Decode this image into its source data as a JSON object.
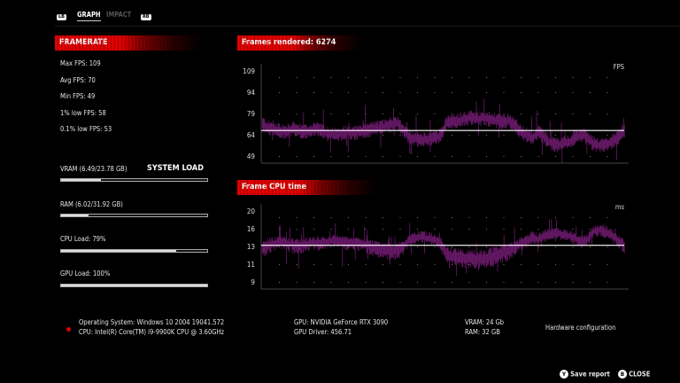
{
  "tabs": {
    "left_bumper": "LB",
    "items": [
      {
        "label": "GRAPH",
        "active": true
      },
      {
        "label": "IMPACT",
        "active": false
      }
    ],
    "right_bumper": "RB"
  },
  "framerate": {
    "title": "FRAMERATE",
    "stats": [
      "Max FPS: 109",
      "Avg FPS: 70",
      "Min FPS: 49",
      "1% low FPS: 58",
      "0.1% low FPS: 53"
    ]
  },
  "system_load": {
    "title": "SYSTEM LOAD",
    "items": [
      {
        "label": "VRAM (6.49/23.78 GB)",
        "fraction": 0.27
      },
      {
        "label": "RAM (6.02/31.92 GB)",
        "fraction": 0.19
      },
      {
        "label": "CPU Load: 79%",
        "fraction": 0.79
      },
      {
        "label": "GPU Load: 100%",
        "fraction": 1.0
      }
    ]
  },
  "hardware": {
    "os": "Operating System: Windows 10 2004 19041.572",
    "cpu": "CPU: Intel(R) Core(TM) i9-9900K CPU @ 3.60GHz",
    "gpu": "GPU: NVIDIA GeForce RTX 3090",
    "gpu_driver": "GPU Driver: 456.71",
    "vram": "VRAM: 24 Gb",
    "ram": "RAM: 32 GB",
    "title": "Hardware configuration",
    "status_color": "#e00000"
  },
  "footer": {
    "save_key": "Y",
    "save_label": "Save report",
    "close_key": "B",
    "close_label": "CLOSE"
  },
  "colors": {
    "accent": "#e00000",
    "series": "#6a1a6a",
    "average": "#ffffff"
  },
  "chart_data": [
    {
      "type": "bar",
      "title": "Frames rendered: 6274",
      "unit": "FPS",
      "ticks": [
        "109",
        "94",
        "79",
        "64",
        "49"
      ],
      "tick_values": [
        109,
        94,
        79,
        64,
        49
      ],
      "average_line": 67,
      "grid": "dotted",
      "trend": [
        72,
        69,
        68,
        67,
        66,
        68,
        67,
        66,
        67,
        68,
        66,
        65,
        64,
        65,
        66,
        65,
        66,
        67,
        68,
        69,
        70,
        71,
        72,
        68,
        62,
        61,
        60,
        61,
        62,
        63,
        72,
        73,
        74,
        75,
        76,
        75,
        76,
        75,
        74,
        73,
        74,
        72,
        66,
        64,
        62,
        66,
        62,
        58,
        57,
        58,
        59,
        62,
        64,
        62,
        57,
        56,
        57,
        59,
        62,
        67
      ]
    },
    {
      "type": "bar",
      "title": "Frame CPU time",
      "unit": "ms",
      "ticks": [
        "20",
        "16",
        "13",
        "11",
        "9"
      ],
      "tick_values": [
        20,
        16,
        13,
        11,
        9
      ],
      "average_line": 13.2,
      "grid": "dotted",
      "trend": [
        12.6,
        13.2,
        13.5,
        13.7,
        13.6,
        13.3,
        13.2,
        13.4,
        13.5,
        13.6,
        13.7,
        13.9,
        14,
        13.8,
        13.6,
        13.6,
        13.5,
        13.3,
        13,
        12.8,
        12.6,
        12.5,
        12.6,
        13,
        14.2,
        14.5,
        14.6,
        14.4,
        14.2,
        13.8,
        12.2,
        11.9,
        11.7,
        11.6,
        11.6,
        11.5,
        11.6,
        11.7,
        11.9,
        12.2,
        12.4,
        12.8,
        13.4,
        14,
        14.6,
        14.2,
        14.8,
        15.2,
        15.3,
        15,
        14.8,
        14.3,
        13.8,
        14.2,
        15.6,
        15.8,
        15.5,
        14.8,
        14,
        13.2
      ]
    }
  ]
}
